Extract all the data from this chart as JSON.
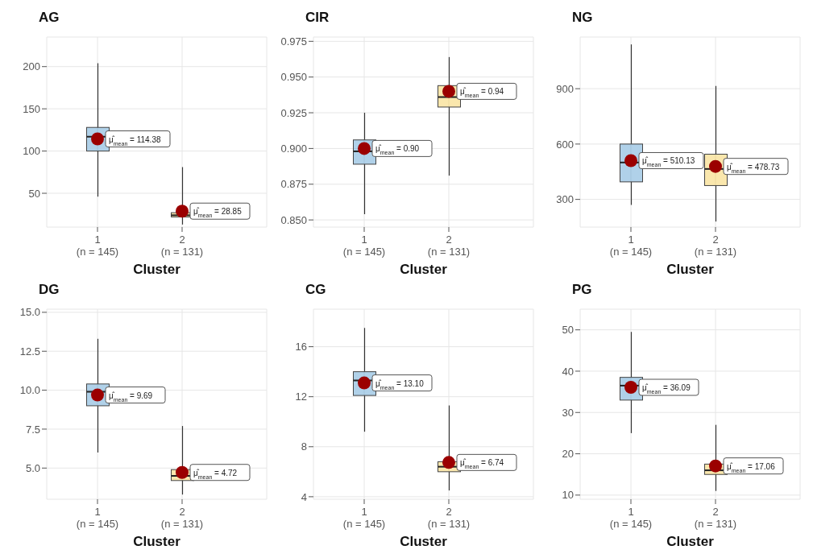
{
  "chart_data": [
    {
      "type": "box",
      "title": "AG",
      "xlabel": "Cluster",
      "categories": [
        "1\n(n = 145)",
        "2\n(n = 131)"
      ],
      "colors": [
        "#4f98cf",
        "#f3c94a"
      ],
      "grid": true,
      "ylim": [
        10,
        235
      ],
      "yticks": [
        50,
        100,
        150,
        200
      ],
      "boxes": [
        {
          "low": 46,
          "q1": 100,
          "median": 117,
          "q3": 128,
          "high": 204,
          "mean": 114.38
        },
        {
          "low": 13,
          "q1": 22,
          "median": 24,
          "q3": 27,
          "high": 81,
          "mean": 28.85
        }
      ],
      "annotations": [
        "μ̂$_{mean}$ = 114.38",
        "μ̂$_{mean}$ = 28.85"
      ]
    },
    {
      "type": "box",
      "title": "CIR",
      "xlabel": "Cluster",
      "categories": [
        "1\n(n = 145)",
        "2\n(n = 131)"
      ],
      "colors": [
        "#4f98cf",
        "#f3c94a"
      ],
      "grid": true,
      "ylim": [
        0.845,
        0.978
      ],
      "yticks": [
        {
          "value": 0.85,
          "label": "0.850"
        },
        {
          "value": 0.875,
          "label": "0.875"
        },
        {
          "value": 0.9,
          "label": "0.900"
        },
        {
          "value": 0.925,
          "label": "0.925"
        },
        {
          "value": 0.95,
          "label": "0.950"
        },
        {
          "value": 0.975,
          "label": "0.975"
        }
      ],
      "boxes": [
        {
          "low": 0.854,
          "q1": 0.889,
          "median": 0.898,
          "q3": 0.906,
          "high": 0.925,
          "mean": 0.9
        },
        {
          "low": 0.881,
          "q1": 0.929,
          "median": 0.936,
          "q3": 0.944,
          "high": 0.964,
          "mean": 0.94
        }
      ],
      "annotations": [
        "μ̂$_{mean}$ = 0.90",
        "μ̂$_{mean}$ = 0.94"
      ]
    },
    {
      "type": "box",
      "title": "NG",
      "xlabel": "Cluster",
      "categories": [
        "1\n(n = 145)",
        "2\n(n = 131)"
      ],
      "colors": [
        "#4f98cf",
        "#f3c94a"
      ],
      "grid": true,
      "ylim": [
        150,
        1180
      ],
      "yticks": [
        300,
        600,
        900
      ],
      "boxes": [
        {
          "low": 270,
          "q1": 395,
          "median": 500,
          "q3": 600,
          "high": 1140,
          "mean": 510.13
        },
        {
          "low": 180,
          "q1": 375,
          "median": 465,
          "q3": 545,
          "high": 915,
          "mean": 478.73
        }
      ],
      "annotations": [
        "μ̂$_{mean}$ = 510.13",
        "μ̂$_{mean}$ = 478.73"
      ]
    },
    {
      "type": "box",
      "title": "DG",
      "xlabel": "Cluster",
      "categories": [
        "1\n(n = 145)",
        "2\n(n = 131)"
      ],
      "colors": [
        "#4f98cf",
        "#f3c94a"
      ],
      "grid": true,
      "ylim": [
        3,
        15.2
      ],
      "yticks": [
        {
          "value": 5,
          "label": "5.0"
        },
        {
          "value": 7.5,
          "label": "7.5"
        },
        {
          "value": 10,
          "label": "10.0"
        },
        {
          "value": 12.5,
          "label": "12.5"
        },
        {
          "value": 15,
          "label": "15.0"
        }
      ],
      "boxes": [
        {
          "low": 6,
          "q1": 9,
          "median": 9.9,
          "q3": 10.4,
          "high": 13.3,
          "mean": 9.69
        },
        {
          "low": 3.3,
          "q1": 4.2,
          "median": 4.5,
          "q3": 4.9,
          "high": 7.7,
          "mean": 4.72
        }
      ],
      "annotations": [
        "μ̂$_{mean}$ = 9.69",
        "μ̂$_{mean}$ = 4.72"
      ]
    },
    {
      "type": "box",
      "title": "CG",
      "xlabel": "Cluster",
      "categories": [
        "1\n(n = 145)",
        "2\n(n = 131)"
      ],
      "colors": [
        "#4f98cf",
        "#f3c94a"
      ],
      "grid": true,
      "ylim": [
        3.8,
        19
      ],
      "yticks": [
        4,
        8,
        12,
        16
      ],
      "boxes": [
        {
          "low": 9.2,
          "q1": 12.1,
          "median": 13.3,
          "q3": 14,
          "high": 17.5,
          "mean": 13.1
        },
        {
          "low": 4.5,
          "q1": 6,
          "median": 6.4,
          "q3": 6.8,
          "high": 11.3,
          "mean": 6.74
        }
      ],
      "annotations": [
        "μ̂$_{mean}$ = 13.10",
        "μ̂$_{mean}$ = 6.74"
      ]
    },
    {
      "type": "box",
      "title": "PG",
      "xlabel": "Cluster",
      "categories": [
        "1\n(n = 145)",
        "2\n(n = 131)"
      ],
      "colors": [
        "#4f98cf",
        "#f3c94a"
      ],
      "grid": true,
      "ylim": [
        9,
        55
      ],
      "yticks": [
        10,
        20,
        30,
        40,
        50
      ],
      "boxes": [
        {
          "low": 25,
          "q1": 33,
          "median": 36.5,
          "q3": 38.5,
          "high": 49.5,
          "mean": 36.09
        },
        {
          "low": 11,
          "q1": 15,
          "median": 16,
          "q3": 17.5,
          "high": 27,
          "mean": 17.06
        }
      ],
      "annotations": [
        "μ̂$_{mean}$ = 36.09",
        "μ̂$_{mean}$ = 17.06"
      ]
    }
  ]
}
